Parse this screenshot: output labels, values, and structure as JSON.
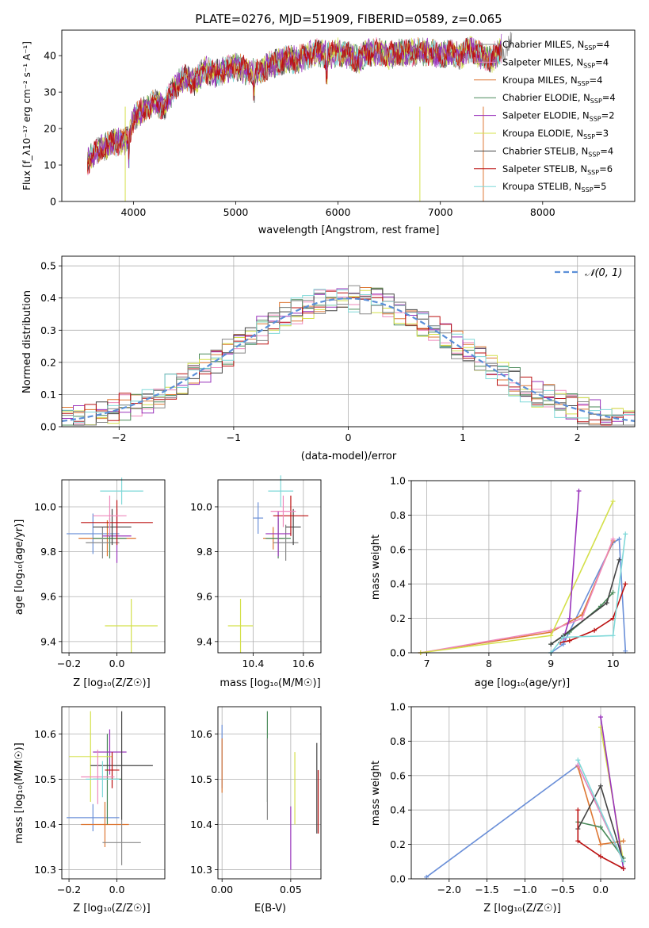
{
  "figure": {
    "title": "PLATE=0276, MJD=51909, FIBERID=0589, z=0.065",
    "series_colors": [
      "#888888",
      "#ee88bb",
      "#dd7733",
      "#4a8a5a",
      "#9933bb",
      "#d4e04a",
      "#444444",
      "#bb1111",
      "#7fd8d8"
    ],
    "sub_colors": [
      "#6a8fd8",
      "#dd7733",
      "#4a8a5a",
      "#888888",
      "#9933bb",
      "#d4e04a",
      "#444444",
      "#bb1111",
      "#ee88bb",
      "#7fd8d8"
    ]
  },
  "chart_data": [
    {
      "id": "spectrum",
      "type": "line",
      "xlabel": "wavelength [Angstrom, rest frame]",
      "ylabel": "Flux [f_λ10⁻¹⁷ erg cm⁻² s⁻¹ A⁻¹]",
      "xlim": [
        3300,
        8900
      ],
      "ylim": [
        0,
        47
      ],
      "xticks": [
        "4000",
        "5000",
        "6000",
        "7000",
        "8000"
      ],
      "yticks": [
        "0",
        "10",
        "20",
        "30",
        "40"
      ],
      "legend_position": "right",
      "legend": [
        "Chabrier MILES, N_SSP=4",
        "Salpeter MILES, N_SSP=4",
        "Kroupa MILES, N_SSP=4",
        "Chabrier ELODIE, N_SSP=4",
        "Salpeter ELODIE, N_SSP=2",
        "Kroupa ELODIE, N_SSP=3",
        "Chabrier STELIB, N_SSP=4",
        "Salpeter STELIB, N_SSP=6",
        "Kroupa STELIB, N_SSP=5"
      ],
      "envelope": {
        "x": [
          3550,
          3650,
          3800,
          3950,
          4000,
          4100,
          4200,
          4300,
          4400,
          4500,
          4600,
          4700,
          4800,
          4900,
          5000,
          5100,
          5200,
          5300,
          5400,
          5500,
          5600,
          5700,
          5800,
          5900,
          6000,
          6100,
          6200,
          6300,
          6400,
          6500,
          6600,
          6700,
          6800,
          6900,
          7000,
          7100,
          7200,
          7300,
          7400,
          7500,
          7600,
          7700
        ],
        "y": [
          11,
          14,
          16,
          17,
          23,
          25,
          27,
          26,
          31,
          34,
          33,
          36,
          35,
          36,
          37,
          36,
          35,
          37,
          38,
          39,
          39,
          40,
          41,
          40,
          41,
          40,
          39,
          41,
          41,
          40,
          41,
          41,
          41,
          41,
          40,
          41,
          40,
          42,
          40,
          39,
          42,
          43
        ]
      },
      "grid": false
    },
    {
      "id": "residual-histogram",
      "type": "bar",
      "xlabel": "(data-model)/error",
      "ylabel": "Normed distribution",
      "xlim": [
        -2.5,
        2.5
      ],
      "ylim": [
        0,
        0.53
      ],
      "xticks": [
        "−2",
        "−1",
        "0",
        "1",
        "2"
      ],
      "yticks": [
        "0.0",
        "0.1",
        "0.2",
        "0.3",
        "0.4",
        "0.5"
      ],
      "legend": [
        "𝒩(0, 1)"
      ],
      "legend_position": "top-right",
      "grid": true
    },
    {
      "id": "age-vs-Z",
      "type": "scatter",
      "xlabel": "Z [log₁₀(Z/Z☉)]",
      "ylabel": "age  [log₁₀(age/yr)]",
      "xlim": [
        -0.23,
        0.2
      ],
      "ylim": [
        9.35,
        10.12
      ],
      "xticks": [
        "−0.2",
        "0.0"
      ],
      "yticks": [
        "9.4",
        "9.6",
        "9.8",
        "10.0"
      ],
      "points": [
        {
          "x": -0.1,
          "y": 9.88,
          "xe": 0.11,
          "ye": 0.09
        },
        {
          "x": -0.04,
          "y": 9.86,
          "xe": 0.12,
          "ye": 0.08
        },
        {
          "x": -0.03,
          "y": 9.86,
          "xe": 0.07,
          "ye": 0.09
        },
        {
          "x": -0.06,
          "y": 9.84,
          "xe": 0.07,
          "ye": 0.07
        },
        {
          "x": 0.0,
          "y": 9.87,
          "xe": 0.06,
          "ye": 0.12
        },
        {
          "x": 0.06,
          "y": 9.47,
          "xe": 0.11,
          "ye": 0.12
        },
        {
          "x": -0.02,
          "y": 9.91,
          "xe": 0.08,
          "ye": 0.08
        },
        {
          "x": 0.0,
          "y": 9.93,
          "xe": 0.15,
          "ye": 0.1
        },
        {
          "x": -0.03,
          "y": 9.96,
          "xe": 0.07,
          "ye": 0.09
        },
        {
          "x": 0.02,
          "y": 10.07,
          "xe": 0.09,
          "ye": 0.06
        }
      ],
      "grid": true
    },
    {
      "id": "age-vs-mass",
      "type": "scatter",
      "xlabel": "mass [log₁₀(M/M☉)]",
      "ylabel": "",
      "xlim": [
        10.26,
        10.67
      ],
      "ylim": [
        9.35,
        10.12
      ],
      "xticks": [
        "10.4",
        "10.6"
      ],
      "yticks": [
        "9.4",
        "9.6",
        "9.8",
        "10.0"
      ],
      "points": [
        {
          "x": 10.42,
          "y": 9.95,
          "xe": 0.02,
          "ye": 0.07
        },
        {
          "x": 10.48,
          "y": 9.86,
          "xe": 0.04,
          "ye": 0.05
        },
        {
          "x": 10.5,
          "y": 9.86,
          "xe": 0.05,
          "ye": 0.09
        },
        {
          "x": 10.53,
          "y": 9.84,
          "xe": 0.05,
          "ye": 0.08
        },
        {
          "x": 10.5,
          "y": 9.88,
          "xe": 0.05,
          "ye": 0.1
        },
        {
          "x": 10.35,
          "y": 9.47,
          "xe": 0.05,
          "ye": 0.12
        },
        {
          "x": 10.56,
          "y": 9.91,
          "xe": 0.03,
          "ye": 0.08
        },
        {
          "x": 10.55,
          "y": 9.96,
          "xe": 0.07,
          "ye": 0.09
        },
        {
          "x": 10.52,
          "y": 9.98,
          "xe": 0.05,
          "ye": 0.07
        },
        {
          "x": 10.51,
          "y": 10.07,
          "xe": 0.05,
          "ye": 0.07
        }
      ],
      "grid": true
    },
    {
      "id": "cumulative-vs-age",
      "type": "line",
      "xlabel": "age  [log₁₀(age/yr)]",
      "ylabel": "mass weight",
      "xlim": [
        6.75,
        10.35
      ],
      "ylim": [
        0,
        1.0
      ],
      "xticks": [
        "7",
        "8",
        "9",
        "10"
      ],
      "yticks": [
        "0.0",
        "0.2",
        "0.4",
        "0.6",
        "0.8",
        "1.0"
      ],
      "grid": true
    },
    {
      "id": "mass-vs-Z",
      "type": "scatter",
      "xlabel": "Z [log₁₀(Z/Z☉)]",
      "ylabel": "mass [log₁₀(M/M☉)]",
      "xlim": [
        -0.23,
        0.2
      ],
      "ylim": [
        10.28,
        10.66
      ],
      "xticks": [
        "−0.2",
        "0.0"
      ],
      "yticks": [
        "10.3",
        "10.4",
        "10.5",
        "10.6"
      ],
      "grid": true
    },
    {
      "id": "mass-vs-ebv",
      "type": "scatter",
      "xlabel": "E(B-V)",
      "ylabel": "",
      "xlim": [
        -0.003,
        0.072
      ],
      "ylim": [
        10.28,
        10.66
      ],
      "xticks": [
        "0.00",
        "0.05"
      ],
      "yticks": [
        "10.3",
        "10.4",
        "10.5",
        "10.6"
      ],
      "grid": true
    },
    {
      "id": "cumulative-vs-Z",
      "type": "line",
      "xlabel": "Z [log₁₀(Z/Z☉)]",
      "ylabel": "mass weight",
      "xlim": [
        -2.5,
        0.45
      ],
      "ylim": [
        0,
        1.0
      ],
      "xticks": [
        "−2.0",
        "−1.5",
        "−1.0",
        "−0.5",
        "0.0"
      ],
      "yticks": [
        "0.0",
        "0.2",
        "0.4",
        "0.6",
        "0.8",
        "1.0"
      ],
      "grid": true
    }
  ]
}
